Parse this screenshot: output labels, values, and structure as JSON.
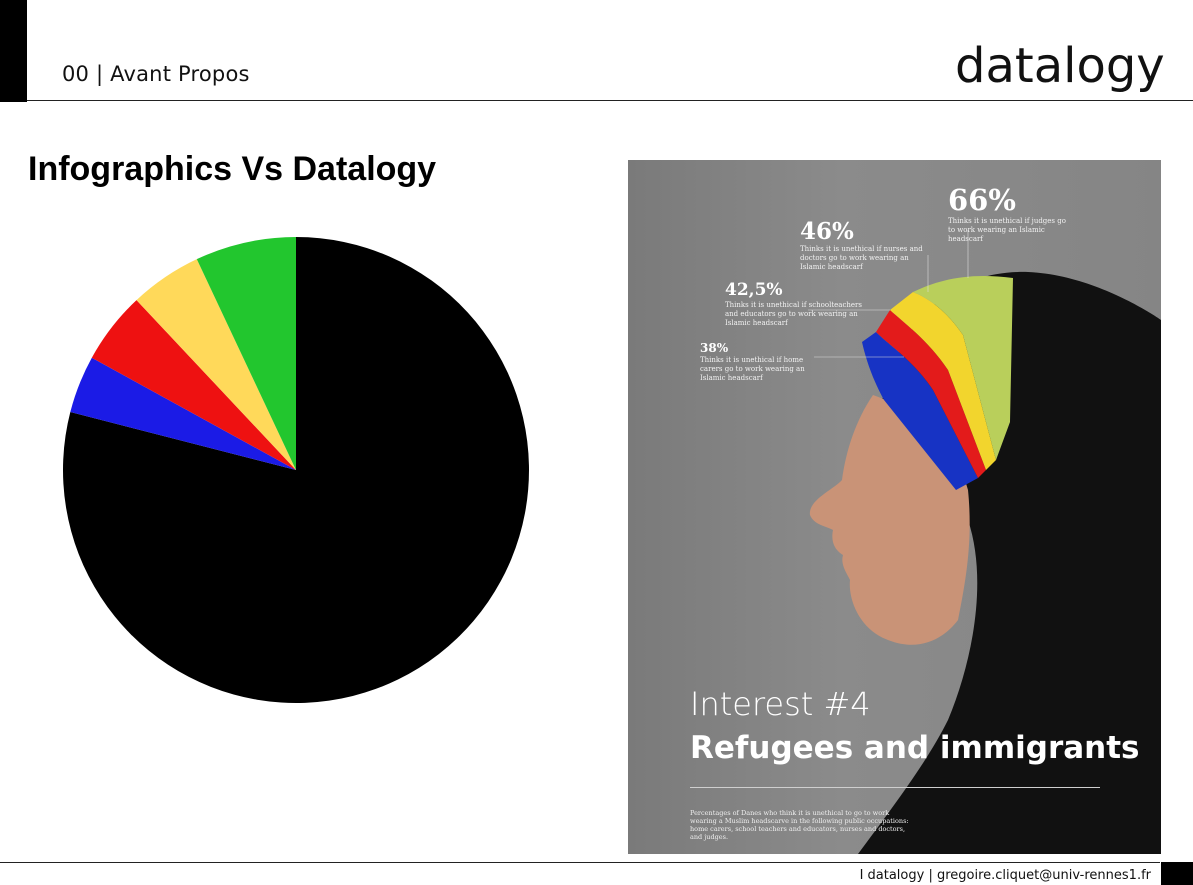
{
  "header": {
    "section_label": "00 | Avant Propos",
    "logo_text": "datalogy"
  },
  "slide": {
    "title": "Infographics Vs Datalogy"
  },
  "chart_data": {
    "type": "pie",
    "title": "",
    "slices": [
      {
        "label": "",
        "value": 79,
        "color": "#000000"
      },
      {
        "label": "",
        "value": 4,
        "color": "#1b1be6"
      },
      {
        "label": "",
        "value": 5,
        "color": "#ee1111"
      },
      {
        "label": "",
        "value": 5,
        "color": "#ffd95a"
      },
      {
        "label": "",
        "value": 7,
        "color": "#22c62e"
      }
    ]
  },
  "poster": {
    "stats": [
      {
        "pct": "66%",
        "desc": "Thinks it is unethical if judges go to work wearing an Islamic headscarf"
      },
      {
        "pct": "46%",
        "desc": "Thinks it is unethical if nurses and doctors go to work wearing an Islamic headscarf"
      },
      {
        "pct": "42,5%",
        "desc": "Thinks it is unethical if schoolteachers and educators go to work wearing an Islamic headscarf"
      },
      {
        "pct": "38%",
        "desc": "Thinks it is unethical if home carers go to work wearing an Islamic headscarf"
      }
    ],
    "interest_label": "Interest #4",
    "topic": "Refugees and immigrants",
    "caption": "Percentages of Danes who think it is unethical to go to work wearing a Muslim headscarve in the following public occupations: home carers, school teachers and educators, nurses and doctors, and judges."
  },
  "footer": {
    "text": "I datalogy | gregoire.cliquet@univ-rennes1.fr"
  }
}
